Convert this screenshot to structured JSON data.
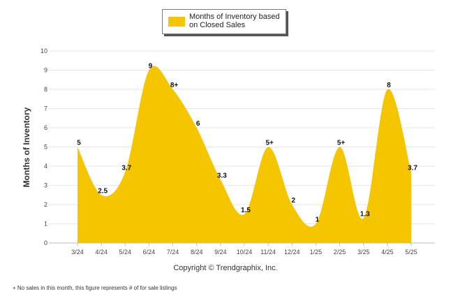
{
  "chart_data": {
    "type": "area",
    "categories": [
      "3/24",
      "4/24",
      "5/24",
      "6/24",
      "7/24",
      "8/24",
      "9/24",
      "10/24",
      "11/24",
      "12/24",
      "1/25",
      "2/25",
      "3/25",
      "4/25",
      "5/25"
    ],
    "values": [
      5,
      2.5,
      3.7,
      9,
      8,
      6,
      3.3,
      1.5,
      5,
      2,
      1,
      5,
      1.3,
      8,
      3.7
    ],
    "labels": [
      "5",
      "2.5",
      "3.7",
      "9",
      "8+",
      "6",
      "3.3",
      "1.5",
      "5+",
      "2",
      "1",
      "5+",
      "1.3",
      "8",
      "3.7"
    ],
    "series": [
      {
        "name": "Months of Inventory based on Closed Sales",
        "values": [
          5,
          2.5,
          3.7,
          9,
          8,
          6,
          3.3,
          1.5,
          5,
          2,
          1,
          5,
          1.3,
          8,
          3.7
        ]
      }
    ],
    "ylabel": "Months of Inventory",
    "ylim": [
      0,
      10
    ],
    "yticks": [
      0,
      1,
      2,
      3,
      4,
      5,
      6,
      7,
      8,
      9,
      10
    ],
    "grid": true,
    "legend_position": "top-center",
    "fill_color": "#f5c500"
  },
  "legend": {
    "label_line1": "Months of Inventory based",
    "label_line2": "on Closed Sales"
  },
  "copyright": "Copyright © Trendgraphix, Inc.",
  "footnote": "+  No sales in this month, this figure represents # of for sale listings"
}
